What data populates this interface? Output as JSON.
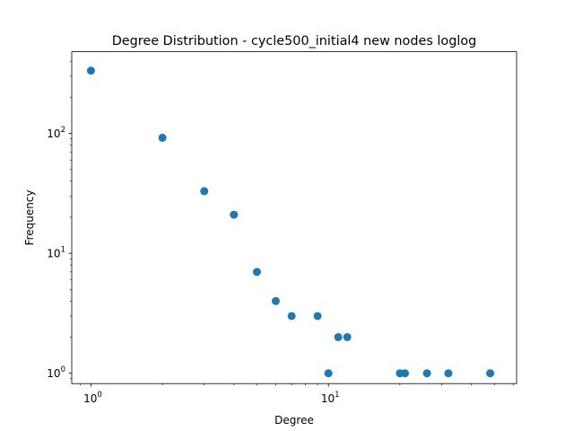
{
  "chart_data": {
    "type": "scatter",
    "title": "Degree Distribution - cycle500_initial4 new nodes loglog",
    "xlabel": "Degree",
    "ylabel": "Frequency",
    "xscale": "log",
    "yscale": "log",
    "xlim": [
      0.83,
      62
    ],
    "ylim": [
      0.82,
      480
    ],
    "grid": false,
    "marker_color": "#1f77b4",
    "x_major_ticks": [
      {
        "value": 1,
        "base": "10",
        "exp": "0"
      },
      {
        "value": 10,
        "base": "10",
        "exp": "1"
      }
    ],
    "y_major_ticks": [
      {
        "value": 1,
        "base": "10",
        "exp": "0"
      },
      {
        "value": 10,
        "base": "10",
        "exp": "1"
      },
      {
        "value": 100,
        "base": "10",
        "exp": "2"
      }
    ],
    "points": [
      {
        "x": 1,
        "y": 334
      },
      {
        "x": 2,
        "y": 92
      },
      {
        "x": 3,
        "y": 33
      },
      {
        "x": 4,
        "y": 21
      },
      {
        "x": 5,
        "y": 7
      },
      {
        "x": 6,
        "y": 4
      },
      {
        "x": 7,
        "y": 3
      },
      {
        "x": 9,
        "y": 3
      },
      {
        "x": 10,
        "y": 1
      },
      {
        "x": 11,
        "y": 2
      },
      {
        "x": 12,
        "y": 2
      },
      {
        "x": 20,
        "y": 1
      },
      {
        "x": 21,
        "y": 1
      },
      {
        "x": 26,
        "y": 1
      },
      {
        "x": 32,
        "y": 1
      },
      {
        "x": 48,
        "y": 1
      }
    ]
  }
}
